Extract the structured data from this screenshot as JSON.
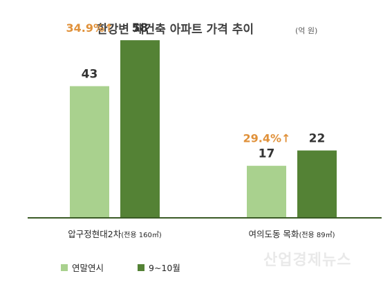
{
  "title": "한강변 재건축 아파트 가격 추이",
  "title_unit": "(억 원)",
  "watermark": "산업경제뉴스",
  "colors": {
    "series1": "#a9d18e",
    "series2": "#548235",
    "change": "#e0913a",
    "axis": "#3a5a25"
  },
  "chart_data": {
    "type": "bar",
    "categories": [
      "압구정현대2차",
      "여의도동 목화"
    ],
    "category_notes": [
      "(전용 160㎡)",
      "(전용 89㎡)"
    ],
    "series": [
      {
        "name": "연말연시",
        "values": [
          43,
          17
        ]
      },
      {
        "name": "9~10월",
        "values": [
          58,
          22
        ]
      }
    ],
    "changes": [
      "34.9%↑",
      "29.4%↑"
    ],
    "ylim": [
      0,
      70
    ],
    "legend": "bottom-left",
    "grid": false
  }
}
